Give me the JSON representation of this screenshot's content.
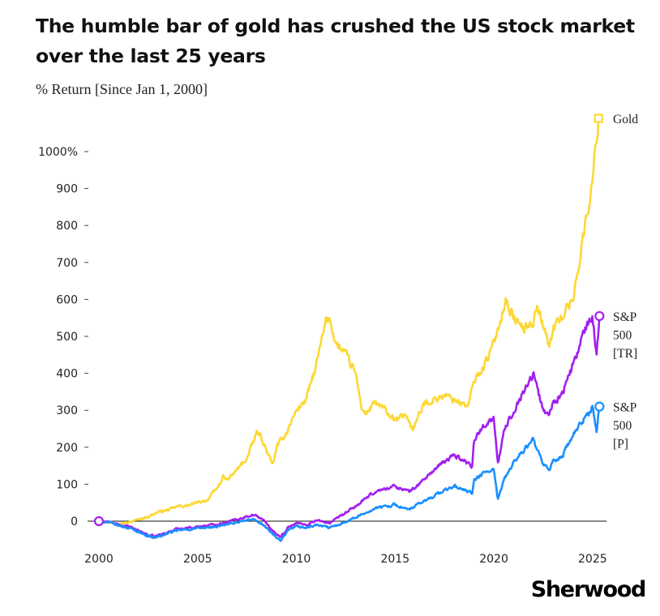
{
  "title": "The humble bar of gold has crushed the US stock market over the last 25 years",
  "subtitle": "% Return [Since Jan 1, 2000]",
  "brand": "Sherwood",
  "chart_data": {
    "type": "line",
    "title": "The humble bar of gold has crushed the US stock market over the last 25 years",
    "ylabel": "% Return [Since Jan 1, 2000]",
    "xlabel": "",
    "xlim": [
      2000,
      2025.5
    ],
    "ylim": [
      -60,
      1100
    ],
    "x_ticks": [
      2000,
      2005,
      2010,
      2015,
      2020,
      2025
    ],
    "x_tick_labels": [
      "2000",
      "2005",
      "2010",
      "2015",
      "2020",
      "2025"
    ],
    "y_ticks": [
      0,
      100,
      200,
      300,
      400,
      500,
      600,
      700,
      800,
      900,
      1000
    ],
    "y_tick_labels": [
      "0",
      "100",
      "200",
      "300",
      "400",
      "500",
      "600",
      "700",
      "800",
      "900",
      "1000%"
    ],
    "grid": false,
    "legend": "inline labels at line ends",
    "series": [
      {
        "name": "Gold",
        "end_label": [
          "Gold"
        ],
        "color": "#fdd835",
        "marker": "square",
        "x": [
          2000,
          2000.5,
          2001,
          2001.5,
          2002,
          2002.5,
          2003,
          2003.5,
          2004,
          2004.5,
          2005,
          2005.5,
          2006,
          2006.3,
          2006.5,
          2007,
          2007.5,
          2008,
          2008.2,
          2008.8,
          2009,
          2009.5,
          2010,
          2010.5,
          2011,
          2011.5,
          2011.7,
          2012,
          2012.5,
          2013,
          2013.3,
          2013.5,
          2014,
          2014.5,
          2015,
          2015.5,
          2015.9,
          2016.5,
          2017,
          2017.5,
          2018,
          2018.7,
          2019,
          2019.5,
          2020,
          2020.6,
          2021,
          2021.5,
          2022,
          2022.2,
          2022.8,
          2023,
          2023.5,
          2024,
          2024.5,
          2025,
          2025.3
        ],
        "values": [
          0,
          -3,
          -5,
          -4,
          5,
          12,
          25,
          30,
          40,
          42,
          50,
          58,
          90,
          120,
          110,
          140,
          170,
          240,
          230,
          150,
          200,
          240,
          300,
          330,
          420,
          540,
          550,
          480,
          450,
          400,
          310,
          290,
          320,
          300,
          270,
          290,
          250,
          320,
          330,
          340,
          330,
          310,
          380,
          420,
          480,
          600,
          550,
          520,
          540,
          590,
          470,
          520,
          560,
          600,
          760,
          920,
          1090
        ]
      },
      {
        "name": "S&P 500 [TR]",
        "end_label": [
          "S&P",
          "500",
          "[TR]"
        ],
        "color": "#a31ff0",
        "marker": "circle",
        "x": [
          2000,
          2000.5,
          2001,
          2001.5,
          2002,
          2002.5,
          2002.8,
          2003.5,
          2004,
          2004.5,
          2005,
          2006,
          2007,
          2007.8,
          2008.3,
          2008.7,
          2009.2,
          2009.6,
          2010,
          2010.5,
          2011,
          2011.7,
          2012,
          2013,
          2014,
          2015,
          2015.7,
          2016,
          2017,
          2018,
          2018.9,
          2019,
          2019.5,
          2020,
          2020.2,
          2020.5,
          2021,
          2021.5,
          2022,
          2022.5,
          2022.8,
          2023,
          2023.5,
          2024,
          2024.5,
          2025,
          2025.2,
          2025.35
        ],
        "values": [
          0,
          -2,
          -10,
          -15,
          -25,
          -38,
          -42,
          -30,
          -20,
          -18,
          -15,
          -8,
          5,
          18,
          5,
          -20,
          -45,
          -15,
          -5,
          -10,
          2,
          -5,
          5,
          40,
          80,
          95,
          80,
          90,
          140,
          180,
          150,
          220,
          260,
          280,
          150,
          240,
          300,
          350,
          400,
          300,
          290,
          320,
          350,
          420,
          500,
          555,
          450,
          555
        ]
      },
      {
        "name": "S&P 500 [P]",
        "end_label": [
          "S&P",
          "500",
          "[P]"
        ],
        "color": "#1a8fff",
        "marker": "circle",
        "x": [
          2000,
          2000.5,
          2001,
          2001.5,
          2002,
          2002.5,
          2002.8,
          2003.5,
          2004,
          2004.5,
          2005,
          2006,
          2007,
          2007.8,
          2008.3,
          2008.7,
          2009.2,
          2009.6,
          2010,
          2010.5,
          2011,
          2011.7,
          2012,
          2013,
          2014,
          2015,
          2015.7,
          2016,
          2017,
          2018,
          2018.9,
          2019,
          2019.5,
          2020,
          2020.2,
          2020.5,
          2021,
          2021.5,
          2022,
          2022.5,
          2022.8,
          2023,
          2023.5,
          2024,
          2024.5,
          2025,
          2025.2,
          2025.35
        ],
        "values": [
          0,
          -3,
          -12,
          -18,
          -28,
          -40,
          -45,
          -33,
          -25,
          -22,
          -20,
          -15,
          -3,
          5,
          -8,
          -30,
          -55,
          -25,
          -15,
          -18,
          -10,
          -18,
          -12,
          10,
          35,
          45,
          30,
          40,
          70,
          95,
          75,
          110,
          130,
          140,
          55,
          110,
          160,
          190,
          220,
          150,
          140,
          160,
          180,
          230,
          270,
          310,
          240,
          310
        ]
      }
    ]
  }
}
